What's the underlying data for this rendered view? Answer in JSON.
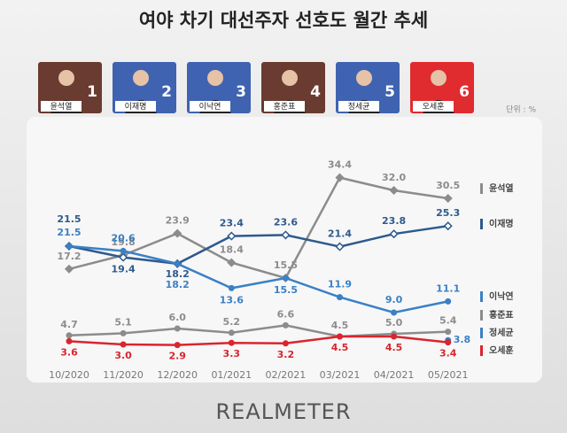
{
  "chart_data": {
    "type": "line",
    "title": "여야 차기 대선주자 선호도 월간 추세",
    "unit": "단위 : %",
    "source": "REALMETER",
    "candidates": [
      {
        "name": "윤석열",
        "number": 1,
        "color": "#6a3b30"
      },
      {
        "name": "이재명",
        "number": 2,
        "color": "#3f63b0"
      },
      {
        "name": "이낙연",
        "number": 3,
        "color": "#3f63b0"
      },
      {
        "name": "홍준표",
        "number": 4,
        "color": "#6a3b30"
      },
      {
        "name": "정세균",
        "number": 5,
        "color": "#3f63b0"
      },
      {
        "name": "오세훈",
        "number": 6,
        "color": "#e02b2f"
      }
    ],
    "categories": [
      "10/2020",
      "11/2020",
      "12/2020",
      "01/2021",
      "02/2021",
      "03/2021",
      "04/2021",
      "05/2021"
    ],
    "series": [
      {
        "name": "윤석열",
        "color": "#8c8c8c",
        "values": [
          17.2,
          19.8,
          23.9,
          18.4,
          15.5,
          34.4,
          32,
          30.5
        ],
        "value_labels": [
          "17.2",
          "19.8",
          "23.9",
          "18.4",
          "15.5",
          "34.4",
          "32.0",
          "30.5"
        ]
      },
      {
        "name": "이재명",
        "color": "#2e5a8e",
        "values": [
          21.5,
          19.4,
          18.2,
          23.4,
          23.6,
          21.4,
          23.8,
          25.3
        ]
      },
      {
        "name": "이낙연",
        "color": "#3a80c6",
        "values": [
          21.5,
          20.6,
          18.2,
          13.6,
          15.5,
          11.9,
          9,
          11.1
        ],
        "value_labels": [
          "21.5",
          "20.6",
          "18.2",
          "13.6",
          "15.5",
          "11.9",
          "9.0",
          "11.1"
        ]
      },
      {
        "name": "홍준표",
        "color": "#8c8c8c",
        "values": [
          4.7,
          5.1,
          6,
          5.2,
          6.6,
          4.5,
          5,
          5.4
        ],
        "value_labels": [
          "4.7",
          "5.1",
          "6.0",
          "5.2",
          "6.6",
          "4.5",
          "5.0",
          "5.4"
        ]
      },
      {
        "name": "정세균",
        "color": "#3a80c6",
        "values": [
          null,
          null,
          null,
          null,
          null,
          null,
          null,
          3.8
        ]
      },
      {
        "name": "오세훈",
        "color": "#d9252e",
        "values": [
          3.6,
          3,
          2.9,
          3.3,
          3.2,
          4.5,
          4.5,
          3.4
        ],
        "value_labels": [
          "3.6",
          "3.0",
          "2.9",
          "3.3",
          "3.2",
          "4.5",
          "4.5",
          "3.4"
        ]
      }
    ]
  }
}
